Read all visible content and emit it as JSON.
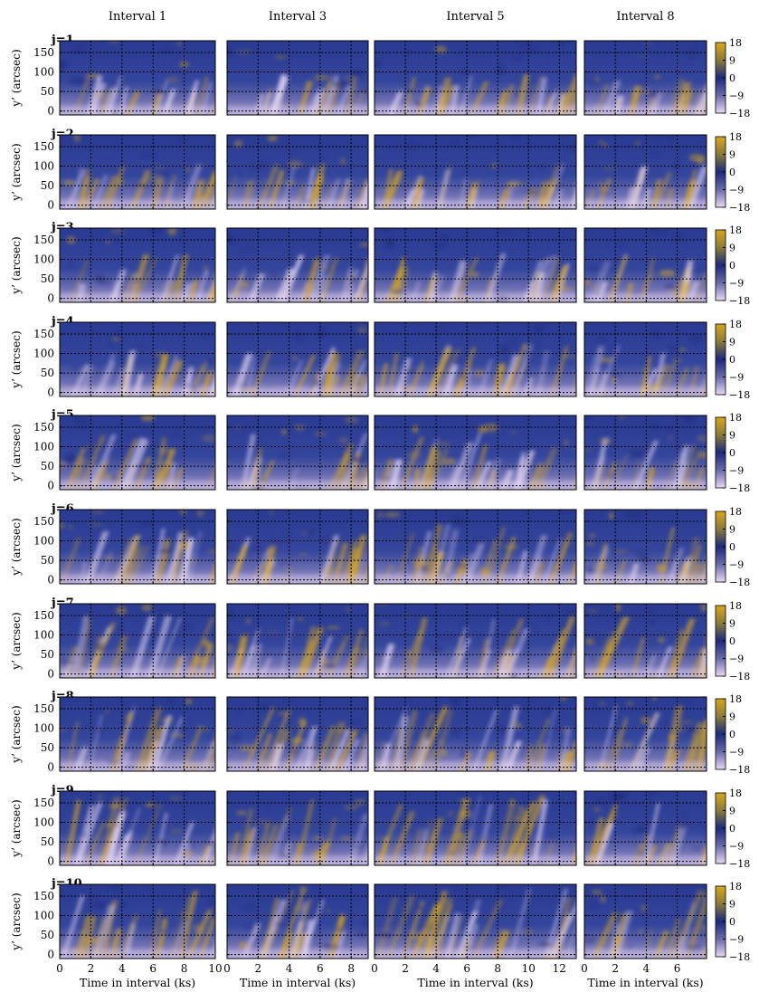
{
  "chart_data": {
    "type": "heatmap",
    "columns": [
      {
        "title": "Interval 1",
        "xlabel": "Time in interval (ks)",
        "xlim": [
          0,
          10
        ],
        "xticks": [
          0,
          2,
          4,
          6,
          8,
          10
        ]
      },
      {
        "title": "Interval 3",
        "xlabel": "Time in interval (ks)",
        "xlim": [
          0,
          9.1
        ],
        "xticks": [
          0,
          2,
          4,
          6,
          8
        ]
      },
      {
        "title": "Interval 5",
        "xlabel": "Time in interval (ks)",
        "xlim": [
          0,
          13.1
        ],
        "xticks": [
          0,
          2,
          4,
          6,
          8,
          10,
          12
        ]
      },
      {
        "title": "Interval 8",
        "xlabel": "Time in interval (ks)",
        "xlim": [
          0,
          7.9
        ],
        "xticks": [
          0,
          2,
          4,
          6
        ]
      }
    ],
    "rows": [
      "j=1",
      "j=2",
      "j=3",
      "j=4",
      "j=5",
      "j=6",
      "j=7",
      "j=8",
      "j=9",
      "j=10"
    ],
    "ylabel": "y’ (arcsec)",
    "ylim": [
      -10,
      180
    ],
    "yticks": [
      0,
      50,
      100,
      150
    ],
    "colorbar": {
      "ticks": [
        18,
        9,
        0,
        -9,
        -18
      ],
      "range": [
        -18,
        18
      ]
    },
    "colors": {
      "positive": "#d8a81c",
      "zero": "#1b2a7e",
      "negative": "#e8d8f4",
      "grid": "#000000",
      "frame": "#000000"
    },
    "grid": true
  }
}
